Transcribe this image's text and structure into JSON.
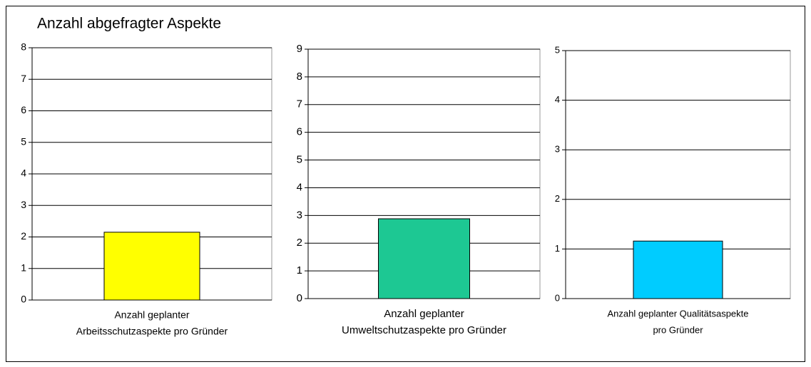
{
  "title": "Anzahl abgefragter Aspekte",
  "chart_data": [
    {
      "type": "bar",
      "categories": [
        [
          "Anzahl geplanter",
          "Arbeitsschutzaspekte pro Gründer"
        ]
      ],
      "values": [
        2.15
      ],
      "color": "#ffff00",
      "ylim": [
        0,
        8
      ],
      "yticks": [
        0,
        1,
        2,
        3,
        4,
        5,
        6,
        7,
        8
      ],
      "grid": true
    },
    {
      "type": "bar",
      "categories": [
        [
          "Anzahl geplanter",
          "Umweltschutzaspekte pro Gründer"
        ]
      ],
      "values": [
        2.88
      ],
      "color": "#1dc893",
      "ylim": [
        0,
        9
      ],
      "yticks": [
        0,
        1,
        2,
        3,
        4,
        5,
        6,
        7,
        8,
        9
      ],
      "grid": true
    },
    {
      "type": "bar",
      "categories": [
        [
          "Anzahl geplanter Qualitätsaspekte",
          "pro Gründer"
        ]
      ],
      "values": [
        1.16
      ],
      "color": "#00ccff",
      "ylim": [
        0,
        5
      ],
      "yticks": [
        0,
        1,
        2,
        3,
        4,
        5
      ],
      "grid": true
    }
  ]
}
